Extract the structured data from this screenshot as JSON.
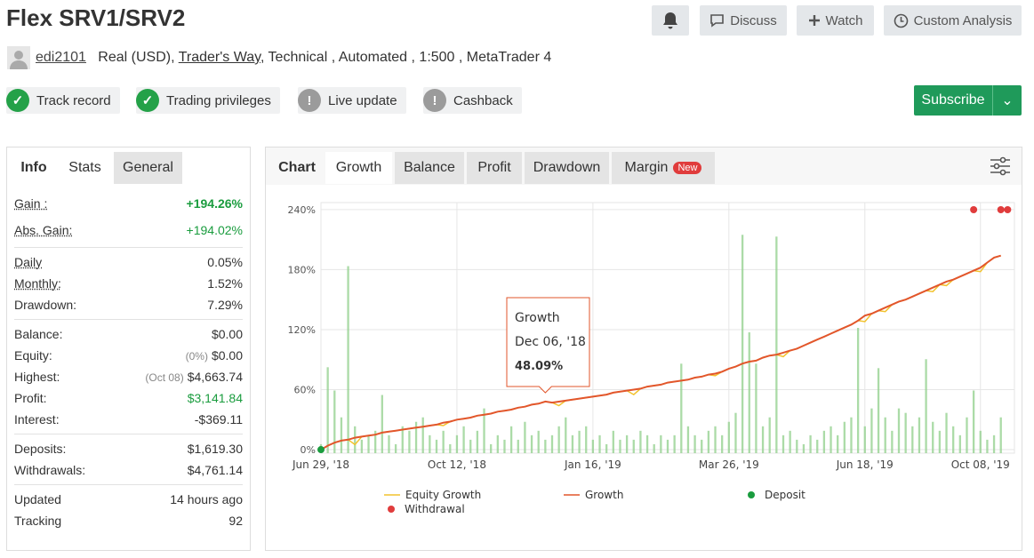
{
  "header": {
    "title": "Flex SRV1/SRV2",
    "buttons": [
      "Discuss",
      "Watch",
      "Custom Analysis"
    ]
  },
  "account": {
    "user": "edi2101",
    "type": "Real (USD),",
    "broker": "Trader's Way",
    "details": ", Technical , Automated , 1:500 , MetaTrader 4"
  },
  "badges": [
    "Track record",
    "Trading privileges",
    "Live update",
    "Cashback"
  ],
  "subscribe": "Subscribe",
  "stats": {
    "label": "Info",
    "tabs": [
      "Stats",
      "General"
    ],
    "groups": [
      [
        {
          "label": "Gain :",
          "value": "+194.26%",
          "color": "green",
          "bold": true,
          "dotted": true
        },
        {
          "label": "Abs. Gain:",
          "value": "+194.02%",
          "color": "green",
          "dotted": true
        }
      ],
      [
        {
          "label": "Daily",
          "value": "0.05%",
          "dotted": true
        },
        {
          "label": "Monthly:",
          "value": "1.52%",
          "dotted": true
        },
        {
          "label": "Drawdown:",
          "value": "7.29%"
        }
      ],
      [
        {
          "label": "Balance:",
          "value": "$0.00"
        },
        {
          "label": "Equity:",
          "note": "(0%)",
          "value": "$0.00"
        },
        {
          "label": "Highest:",
          "note": "(Oct 08)",
          "value": "$4,663.74"
        },
        {
          "label": "Profit:",
          "value": "$3,141.84",
          "color": "green"
        },
        {
          "label": "Interest:",
          "value": "-$369.11"
        }
      ],
      [
        {
          "label": "Deposits:",
          "value": "$1,619.30"
        },
        {
          "label": "Withdrawals:",
          "value": "$4,761.14"
        }
      ],
      [
        {
          "label": "Updated",
          "value": "14 hours ago"
        },
        {
          "label": "Tracking",
          "value": "92"
        }
      ]
    ]
  },
  "chart_tabs": {
    "label": "Chart",
    "tabs": [
      "Growth",
      "Balance",
      "Profit",
      "Drawdown",
      "Margin"
    ],
    "new": "New"
  },
  "chart_data": {
    "type": "line",
    "x": [
      0,
      1,
      2,
      3,
      4,
      5,
      6,
      7,
      8,
      9,
      10,
      11,
      12,
      13,
      14,
      15,
      16,
      17,
      18,
      19,
      20,
      21,
      22,
      23,
      24,
      25,
      26,
      27,
      28,
      29,
      30,
      31,
      32,
      33,
      34,
      35,
      36,
      37,
      38,
      39,
      40,
      41,
      42,
      43,
      44,
      45,
      46,
      47,
      48,
      49,
      50,
      51,
      52,
      53,
      54,
      55,
      56,
      57,
      58,
      59,
      60,
      61,
      62,
      63,
      64,
      65,
      66,
      67,
      68,
      69,
      70,
      71,
      72,
      73,
      74,
      75,
      76,
      77,
      78,
      79,
      80,
      81,
      82,
      83,
      84,
      85,
      86,
      87,
      88,
      89,
      90,
      91,
      92,
      93,
      94,
      95,
      96,
      97,
      98,
      99,
      100
    ],
    "xlim": [
      0,
      102
    ],
    "xticks": [
      {
        "value": 0,
        "label": "Jun 29, '18"
      },
      {
        "value": 20,
        "label": "Oct 12, '18"
      },
      {
        "value": 40,
        "label": "Jan 16, '19"
      },
      {
        "value": 60,
        "label": "Mar 26, '19"
      },
      {
        "value": 80,
        "label": "Jun 18, '19"
      },
      {
        "value": 97,
        "label": "Oct 08, '19"
      }
    ],
    "ylim": [
      -3.5,
      247
    ],
    "yticks": [
      {
        "value": 0,
        "label": "0%"
      },
      {
        "value": 60,
        "label": "60%"
      },
      {
        "value": 120,
        "label": "120%"
      },
      {
        "value": 180,
        "label": "180%"
      },
      {
        "value": 240,
        "label": "240%"
      }
    ],
    "grid": true,
    "series": [
      {
        "name": "Equity Growth",
        "color": "#f2c22e",
        "values": [
          0,
          4,
          7,
          9,
          10,
          5,
          13,
          14,
          15,
          17,
          18,
          19,
          20,
          21,
          22,
          23,
          24,
          25,
          24,
          28,
          30,
          31,
          32,
          34,
          35,
          36,
          38,
          39,
          40,
          42,
          43,
          45,
          46,
          48.09,
          47,
          44,
          49,
          50,
          51,
          52,
          53,
          54,
          55,
          57,
          58,
          59,
          55,
          61,
          63,
          64,
          65,
          67,
          68,
          69,
          70,
          72,
          73,
          75,
          74,
          78,
          81,
          83,
          86,
          88,
          89,
          92,
          94,
          95,
          93,
          99,
          101,
          104,
          107,
          110,
          113,
          116,
          119,
          122,
          125,
          129,
          128,
          136,
          139,
          138,
          145,
          148,
          150,
          153,
          156,
          159,
          158,
          165,
          164,
          170,
          173,
          176,
          179,
          178,
          187,
          192,
          194
        ]
      },
      {
        "name": "Growth",
        "color": "#e2562b",
        "values": [
          0,
          4,
          7,
          9,
          10,
          12,
          13,
          14,
          15,
          17,
          18,
          19,
          20,
          21,
          22,
          23,
          24,
          25,
          27,
          28,
          30,
          31,
          32,
          34,
          35,
          36,
          38,
          39,
          40,
          42,
          43,
          45,
          46,
          48.09,
          47,
          48,
          49,
          50,
          51,
          52,
          53,
          54,
          55,
          57,
          58,
          59,
          60,
          61,
          63,
          64,
          65,
          67,
          68,
          69,
          70,
          72,
          73,
          75,
          76,
          78,
          81,
          83,
          86,
          88,
          89,
          92,
          94,
          95,
          97,
          99,
          101,
          104,
          107,
          110,
          113,
          116,
          119,
          122,
          125,
          129,
          134,
          136,
          139,
          142,
          145,
          148,
          150,
          153,
          156,
          159,
          162,
          165,
          168,
          170,
          173,
          176,
          179,
          182,
          187,
          192,
          194
        ]
      }
    ],
    "bars": {
      "color": "#8fcf8a",
      "axis": "y2",
      "values": [
        10,
        96,
        70,
        40,
        209,
        30,
        15,
        20,
        25,
        65,
        20,
        10,
        30,
        25,
        35,
        40,
        20,
        15,
        25,
        10,
        20,
        30,
        15,
        25,
        50,
        10,
        20,
        15,
        30,
        15,
        35,
        20,
        25,
        15,
        20,
        30,
        40,
        20,
        25,
        30,
        15,
        20,
        10,
        25,
        15,
        20,
        15,
        25,
        20,
        10,
        20,
        15,
        20,
        100,
        30,
        20,
        15,
        25,
        30,
        20,
        35,
        45,
        244,
        135,
        100,
        30,
        40,
        242,
        20,
        25,
        15,
        10,
        20,
        15,
        25,
        30,
        20,
        35,
        40,
        140,
        30,
        50,
        95,
        40,
        25,
        50,
        45,
        30,
        40,
        105,
        35,
        25,
        45,
        30,
        20,
        40,
        70,
        25,
        15,
        20,
        40
      ]
    },
    "y2lim": [
      0,
      280
    ],
    "deposits": {
      "name": "Deposit",
      "color": "#1a9c3e",
      "x": [
        0
      ],
      "values": [
        0
      ]
    },
    "withdrawals": {
      "name": "Withdrawal",
      "color": "#e03c3c",
      "x": [
        96,
        100,
        101
      ]
    },
    "tooltip": {
      "series": "Growth",
      "date": "Dec 06, '18",
      "x": 33,
      "value": 48.09,
      "label": "48.09%"
    }
  }
}
